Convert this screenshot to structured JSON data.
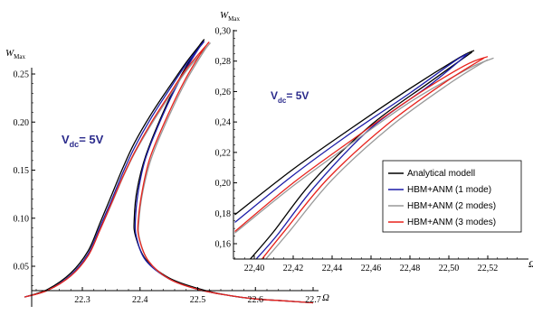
{
  "chart_data": [
    {
      "type": "line",
      "title": "",
      "ylabel_main": "W",
      "ylabel_sub": "Max",
      "xlabel": "Ω",
      "annotation_main": "V",
      "annotation_sub": "dc",
      "annotation_rest": "= 5V",
      "xlim": [
        22.2,
        22.7
      ],
      "ylim": [
        0.01,
        0.29
      ],
      "x_ticks": [
        "22.3",
        "22.4",
        "22.5",
        "22.6",
        "22.7"
      ],
      "y_ticks": [
        "0.05",
        "0.10",
        "0.15",
        "0.20",
        "0.25"
      ],
      "x_tick_values": [
        22.3,
        22.4,
        22.5,
        22.6,
        22.7
      ],
      "y_tick_values": [
        0.05,
        0.1,
        0.15,
        0.2,
        0.25
      ],
      "series": [
        {
          "color": "#000000",
          "x": [
            22.2,
            22.24,
            22.28,
            22.31,
            22.33,
            22.35,
            22.37,
            22.39,
            22.42,
            22.45,
            22.48,
            22.51,
            22.5,
            22.47,
            22.44,
            22.41,
            22.395,
            22.39,
            22.392,
            22.41,
            22.45,
            22.5,
            22.55,
            22.6,
            22.65,
            22.7
          ],
          "y": [
            0.018,
            0.026,
            0.043,
            0.066,
            0.094,
            0.123,
            0.152,
            0.178,
            0.209,
            0.236,
            0.262,
            0.285,
            0.277,
            0.247,
            0.21,
            0.165,
            0.13,
            0.1,
            0.082,
            0.057,
            0.038,
            0.027,
            0.02,
            0.016,
            0.014,
            0.012
          ]
        },
        {
          "color": "#1c1ca8",
          "x": [
            22.2,
            22.24,
            22.28,
            22.31,
            22.33,
            22.35,
            22.37,
            22.39,
            22.42,
            22.45,
            22.48,
            22.51,
            22.5,
            22.47,
            22.44,
            22.41,
            22.397,
            22.392,
            22.394,
            22.41,
            22.45,
            22.5,
            22.55,
            22.6,
            22.65,
            22.7
          ],
          "y": [
            0.018,
            0.025,
            0.041,
            0.063,
            0.09,
            0.118,
            0.147,
            0.173,
            0.205,
            0.233,
            0.26,
            0.283,
            0.275,
            0.245,
            0.208,
            0.163,
            0.128,
            0.098,
            0.08,
            0.056,
            0.037,
            0.026,
            0.02,
            0.016,
            0.014,
            0.012
          ]
        },
        {
          "color": "#999999",
          "x": [
            22.2,
            22.24,
            22.28,
            22.31,
            22.33,
            22.35,
            22.37,
            22.39,
            22.42,
            22.45,
            22.48,
            22.52,
            22.51,
            22.48,
            22.45,
            22.42,
            22.405,
            22.398,
            22.399,
            22.415,
            22.45,
            22.5,
            22.55,
            22.6,
            22.65,
            22.7
          ],
          "y": [
            0.018,
            0.025,
            0.04,
            0.061,
            0.087,
            0.114,
            0.142,
            0.167,
            0.198,
            0.226,
            0.253,
            0.281,
            0.273,
            0.243,
            0.206,
            0.163,
            0.128,
            0.097,
            0.079,
            0.055,
            0.037,
            0.026,
            0.02,
            0.016,
            0.014,
            0.012
          ]
        },
        {
          "color": "#e8221c",
          "x": [
            22.2,
            22.24,
            22.28,
            22.31,
            22.33,
            22.35,
            22.37,
            22.39,
            22.42,
            22.45,
            22.48,
            22.518,
            22.508,
            22.478,
            22.448,
            22.418,
            22.404,
            22.397,
            22.398,
            22.414,
            22.45,
            22.5,
            22.55,
            22.6,
            22.65,
            22.7
          ],
          "y": [
            0.018,
            0.025,
            0.04,
            0.061,
            0.087,
            0.115,
            0.143,
            0.168,
            0.2,
            0.228,
            0.255,
            0.282,
            0.274,
            0.244,
            0.207,
            0.164,
            0.129,
            0.098,
            0.08,
            0.056,
            0.037,
            0.026,
            0.02,
            0.016,
            0.014,
            0.012
          ]
        }
      ]
    },
    {
      "type": "line",
      "title": "",
      "ylabel_main": "W",
      "ylabel_sub": "Max",
      "xlabel": "Ω",
      "annotation_main": "V",
      "annotation_sub": "dc",
      "annotation_rest": "= 5V",
      "xlim": [
        22.39,
        22.535
      ],
      "ylim": [
        0.15,
        0.3
      ],
      "x_ticks": [
        "22,40",
        "22,42",
        "22,44",
        "22,46",
        "22,48",
        "22,50",
        "22,52"
      ],
      "y_ticks": [
        "0,16",
        "0,18",
        "0,20",
        "0,22",
        "0,24",
        "0,26",
        "0,28",
        "0,30"
      ],
      "x_tick_values": [
        22.4,
        22.42,
        22.44,
        22.46,
        22.48,
        22.5,
        22.52
      ],
      "y_tick_values": [
        0.16,
        0.18,
        0.2,
        0.22,
        0.24,
        0.26,
        0.28,
        0.3
      ],
      "legend": {
        "placement": "right",
        "entries": [
          "Analytical modell",
          "HBM+ANM (1 mode)",
          "HBM+ANM (2 modes)",
          "HBM+ANM (3 modes)"
        ]
      },
      "series": [
        {
          "color": "#000000",
          "upper_x": [
            22.39,
            22.42,
            22.45,
            22.48,
            22.505,
            22.513
          ],
          "upper_y": [
            0.179,
            0.209,
            0.236,
            0.262,
            0.282,
            0.287
          ],
          "lower_x": [
            22.512,
            22.49,
            22.46,
            22.43,
            22.41,
            22.398
          ],
          "lower_y": [
            0.286,
            0.266,
            0.238,
            0.201,
            0.168,
            0.15
          ]
        },
        {
          "color": "#1c1ca8",
          "upper_x": [
            22.39,
            22.42,
            22.45,
            22.48,
            22.503,
            22.51
          ],
          "upper_y": [
            0.174,
            0.205,
            0.233,
            0.259,
            0.28,
            0.285
          ],
          "lower_x": [
            22.509,
            22.49,
            22.46,
            22.432,
            22.412,
            22.401
          ],
          "lower_y": [
            0.284,
            0.264,
            0.236,
            0.199,
            0.166,
            0.15
          ]
        },
        {
          "color": "#999999",
          "upper_x": [
            22.39,
            22.42,
            22.45,
            22.48,
            22.51,
            22.523
          ],
          "upper_y": [
            0.167,
            0.198,
            0.226,
            0.253,
            0.275,
            0.282
          ],
          "lower_x": [
            22.52,
            22.5,
            22.47,
            22.44,
            22.418,
            22.406
          ],
          "lower_y": [
            0.281,
            0.265,
            0.237,
            0.202,
            0.168,
            0.15
          ]
        },
        {
          "color": "#e8221c",
          "upper_x": [
            22.39,
            22.42,
            22.45,
            22.48,
            22.508,
            22.52
          ],
          "upper_y": [
            0.168,
            0.2,
            0.228,
            0.255,
            0.277,
            0.283
          ],
          "lower_x": [
            22.518,
            22.498,
            22.468,
            22.438,
            22.416,
            22.404
          ],
          "lower_y": [
            0.282,
            0.266,
            0.238,
            0.203,
            0.169,
            0.15
          ]
        }
      ]
    }
  ]
}
